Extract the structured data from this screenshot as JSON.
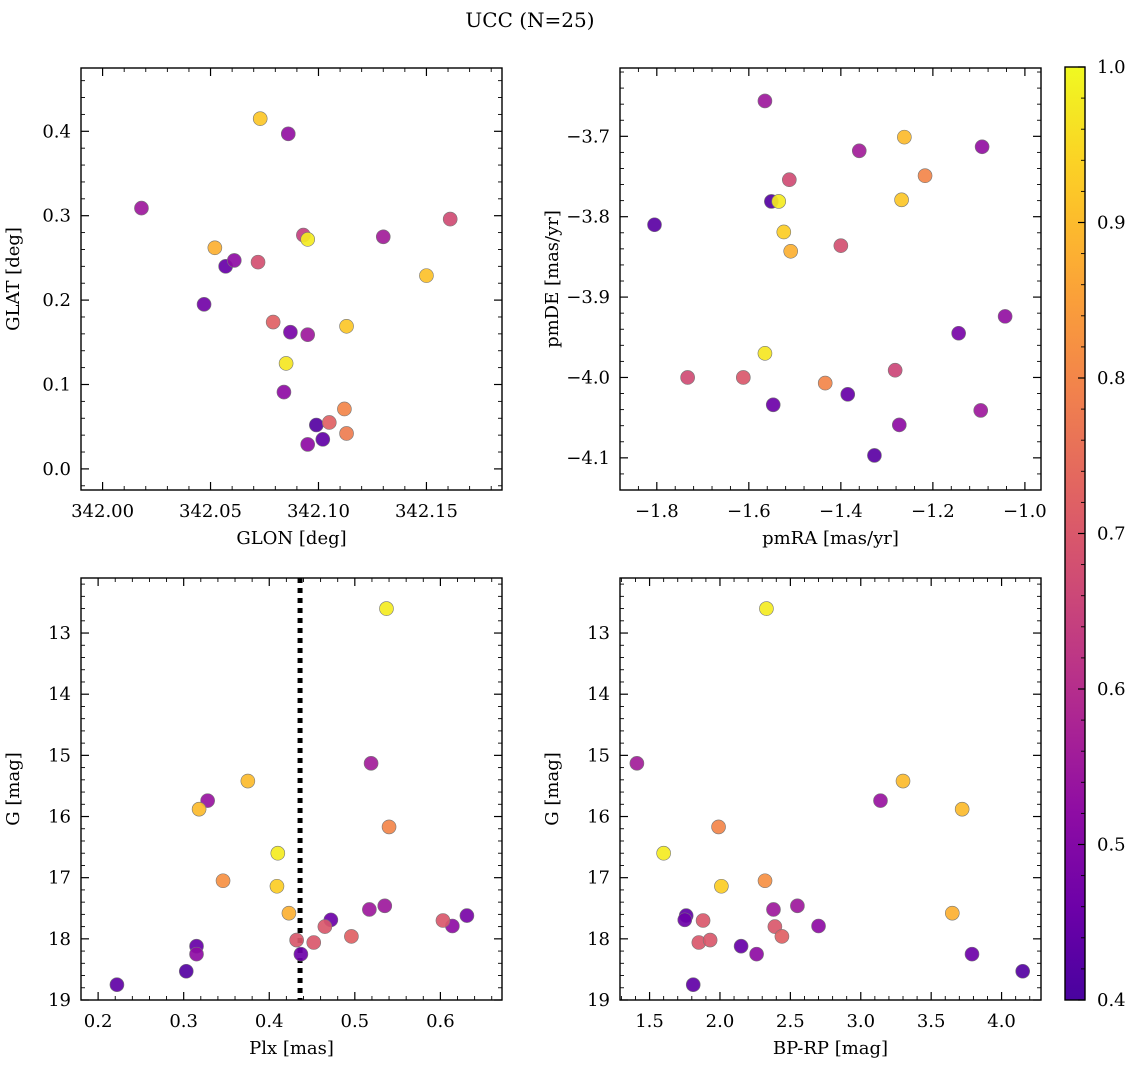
{
  "figure": {
    "title": "UCC (N=25)"
  },
  "colorbar": {
    "range": [
      0.4,
      1.0
    ],
    "ticks": [
      0.4,
      0.5,
      0.6,
      0.7,
      0.8,
      0.9,
      1.0
    ],
    "tick_labels": [
      "0.4",
      "0.5",
      "0.6",
      "0.7",
      "0.8",
      "0.9",
      "1.0"
    ],
    "colormap": "plasma"
  },
  "chart_data": [
    {
      "type": "scatter",
      "xlabel": "GLON [deg]",
      "ylabel": "GLAT [deg]",
      "xlim": [
        341.99,
        342.185
      ],
      "ylim": [
        -0.025,
        0.475
      ],
      "xticks": [
        342.0,
        342.05,
        342.1,
        342.15
      ],
      "xtick_labels": [
        "342.00",
        "342.05",
        "342.10",
        "342.15"
      ],
      "yticks": [
        0.0,
        0.1,
        0.2,
        0.3,
        0.4
      ],
      "ytick_labels": [
        "0.0",
        "0.1",
        "0.2",
        "0.3",
        "0.4"
      ],
      "invert_y": false,
      "points": [
        {
          "x": 342.018,
          "y": 0.309,
          "c": 0.55
        },
        {
          "x": 342.073,
          "y": 0.415,
          "c": 0.92
        },
        {
          "x": 342.086,
          "y": 0.397,
          "c": 0.53
        },
        {
          "x": 342.052,
          "y": 0.262,
          "c": 0.88
        },
        {
          "x": 342.047,
          "y": 0.195,
          "c": 0.47
        },
        {
          "x": 342.057,
          "y": 0.24,
          "c": 0.45
        },
        {
          "x": 342.061,
          "y": 0.247,
          "c": 0.52
        },
        {
          "x": 342.072,
          "y": 0.245,
          "c": 0.68
        },
        {
          "x": 342.079,
          "y": 0.174,
          "c": 0.72
        },
        {
          "x": 342.093,
          "y": 0.277,
          "c": 0.64
        },
        {
          "x": 342.095,
          "y": 0.272,
          "c": 0.98
        },
        {
          "x": 342.087,
          "y": 0.162,
          "c": 0.48
        },
        {
          "x": 342.095,
          "y": 0.159,
          "c": 0.55
        },
        {
          "x": 342.085,
          "y": 0.125,
          "c": 0.97
        },
        {
          "x": 342.084,
          "y": 0.091,
          "c": 0.52
        },
        {
          "x": 342.113,
          "y": 0.169,
          "c": 0.92
        },
        {
          "x": 342.13,
          "y": 0.275,
          "c": 0.56
        },
        {
          "x": 342.161,
          "y": 0.296,
          "c": 0.67
        },
        {
          "x": 342.15,
          "y": 0.229,
          "c": 0.91
        },
        {
          "x": 342.099,
          "y": 0.052,
          "c": 0.42
        },
        {
          "x": 342.095,
          "y": 0.029,
          "c": 0.52
        },
        {
          "x": 342.102,
          "y": 0.035,
          "c": 0.44
        },
        {
          "x": 342.105,
          "y": 0.055,
          "c": 0.72
        },
        {
          "x": 342.112,
          "y": 0.071,
          "c": 0.8
        },
        {
          "x": 342.113,
          "y": 0.042,
          "c": 0.78
        }
      ]
    },
    {
      "type": "scatter",
      "xlabel": "pmRA [mas/yr]",
      "ylabel": "pmDE [mas/yr]",
      "xlim": [
        -1.88,
        -0.965
      ],
      "ylim": [
        -4.14,
        -3.615
      ],
      "xticks": [
        -1.8,
        -1.6,
        -1.4,
        -1.2,
        -1.0
      ],
      "xtick_labels": [
        "−1.8",
        "−1.6",
        "−1.4",
        "−1.2",
        "−1.0"
      ],
      "yticks": [
        -4.1,
        -4.0,
        -3.9,
        -3.8,
        -3.7
      ],
      "ytick_labels": [
        "−4.1",
        "−4.0",
        "−3.9",
        "−3.8",
        "−3.7"
      ],
      "invert_y": false,
      "points": [
        {
          "x": -1.565,
          "y": -3.656,
          "c": 0.55
        },
        {
          "x": -1.262,
          "y": -3.701,
          "c": 0.9
        },
        {
          "x": -1.36,
          "y": -3.718,
          "c": 0.56
        },
        {
          "x": -1.093,
          "y": -3.713,
          "c": 0.53
        },
        {
          "x": -1.512,
          "y": -3.754,
          "c": 0.67
        },
        {
          "x": -1.217,
          "y": -3.749,
          "c": 0.8
        },
        {
          "x": -1.551,
          "y": -3.781,
          "c": 0.42
        },
        {
          "x": -1.535,
          "y": -3.781,
          "c": 0.98
        },
        {
          "x": -1.268,
          "y": -3.779,
          "c": 0.92
        },
        {
          "x": -1.805,
          "y": -3.81,
          "c": 0.43
        },
        {
          "x": -1.524,
          "y": -3.819,
          "c": 0.93
        },
        {
          "x": -1.509,
          "y": -3.843,
          "c": 0.88
        },
        {
          "x": -1.4,
          "y": -3.836,
          "c": 0.68
        },
        {
          "x": -1.043,
          "y": -3.924,
          "c": 0.53
        },
        {
          "x": -1.144,
          "y": -3.945,
          "c": 0.48
        },
        {
          "x": -1.565,
          "y": -3.97,
          "c": 0.97
        },
        {
          "x": -1.733,
          "y": -4.0,
          "c": 0.67
        },
        {
          "x": -1.612,
          "y": -4.0,
          "c": 0.7
        },
        {
          "x": -1.434,
          "y": -4.007,
          "c": 0.8
        },
        {
          "x": -1.282,
          "y": -3.991,
          "c": 0.66
        },
        {
          "x": -1.547,
          "y": -4.034,
          "c": 0.46
        },
        {
          "x": -1.385,
          "y": -4.021,
          "c": 0.45
        },
        {
          "x": -1.273,
          "y": -4.059,
          "c": 0.52
        },
        {
          "x": -1.096,
          "y": -4.041,
          "c": 0.55
        },
        {
          "x": -1.327,
          "y": -4.097,
          "c": 0.43
        }
      ]
    },
    {
      "type": "scatter",
      "xlabel": "Plx [mas]",
      "ylabel": "G [mag]",
      "xlim": [
        0.18,
        0.672
      ],
      "ylim": [
        19.0,
        12.1
      ],
      "xticks": [
        0.2,
        0.3,
        0.4,
        0.5,
        0.6
      ],
      "xtick_labels": [
        "0.2",
        "0.3",
        "0.4",
        "0.5",
        "0.6"
      ],
      "yticks": [
        13,
        14,
        15,
        16,
        17,
        18,
        19
      ],
      "ytick_labels": [
        "13",
        "14",
        "15",
        "16",
        "17",
        "18",
        "19"
      ],
      "invert_y": true,
      "vline": {
        "x": 0.436,
        "style": "dotted"
      },
      "points": [
        {
          "x": 0.537,
          "y": 12.6,
          "c": 0.98
        },
        {
          "x": 0.519,
          "y": 15.13,
          "c": 0.56
        },
        {
          "x": 0.375,
          "y": 15.42,
          "c": 0.9
        },
        {
          "x": 0.328,
          "y": 15.74,
          "c": 0.54
        },
        {
          "x": 0.318,
          "y": 15.88,
          "c": 0.9
        },
        {
          "x": 0.54,
          "y": 16.17,
          "c": 0.8
        },
        {
          "x": 0.41,
          "y": 16.6,
          "c": 0.98
        },
        {
          "x": 0.346,
          "y": 17.05,
          "c": 0.82
        },
        {
          "x": 0.409,
          "y": 17.14,
          "c": 0.93
        },
        {
          "x": 0.423,
          "y": 17.58,
          "c": 0.88
        },
        {
          "x": 0.472,
          "y": 17.69,
          "c": 0.46
        },
        {
          "x": 0.465,
          "y": 17.8,
          "c": 0.7
        },
        {
          "x": 0.517,
          "y": 17.52,
          "c": 0.55
        },
        {
          "x": 0.535,
          "y": 17.46,
          "c": 0.55
        },
        {
          "x": 0.603,
          "y": 17.7,
          "c": 0.7
        },
        {
          "x": 0.614,
          "y": 17.79,
          "c": 0.52
        },
        {
          "x": 0.631,
          "y": 17.62,
          "c": 0.48
        },
        {
          "x": 0.432,
          "y": 18.02,
          "c": 0.7
        },
        {
          "x": 0.452,
          "y": 18.06,
          "c": 0.7
        },
        {
          "x": 0.496,
          "y": 17.96,
          "c": 0.72
        },
        {
          "x": 0.437,
          "y": 18.25,
          "c": 0.46
        },
        {
          "x": 0.315,
          "y": 18.12,
          "c": 0.45
        },
        {
          "x": 0.315,
          "y": 18.25,
          "c": 0.52
        },
        {
          "x": 0.303,
          "y": 18.53,
          "c": 0.42
        },
        {
          "x": 0.222,
          "y": 18.75,
          "c": 0.44
        }
      ]
    },
    {
      "type": "scatter",
      "xlabel": "BP-RP [mag]",
      "ylabel": "G [mag]",
      "xlim": [
        1.29,
        4.28
      ],
      "ylim": [
        19.0,
        12.1
      ],
      "xticks": [
        1.5,
        2.0,
        2.5,
        3.0,
        3.5,
        4.0
      ],
      "xtick_labels": [
        "1.5",
        "2.0",
        "2.5",
        "3.0",
        "3.5",
        "4.0"
      ],
      "yticks": [
        13,
        14,
        15,
        16,
        17,
        18,
        19
      ],
      "ytick_labels": [
        "13",
        "14",
        "15",
        "16",
        "17",
        "18",
        "19"
      ],
      "invert_y": true,
      "points": [
        {
          "x": 2.33,
          "y": 12.6,
          "c": 0.98
        },
        {
          "x": 1.41,
          "y": 15.13,
          "c": 0.56
        },
        {
          "x": 3.3,
          "y": 15.42,
          "c": 0.9
        },
        {
          "x": 3.14,
          "y": 15.74,
          "c": 0.54
        },
        {
          "x": 3.72,
          "y": 15.88,
          "c": 0.9
        },
        {
          "x": 1.99,
          "y": 16.17,
          "c": 0.8
        },
        {
          "x": 1.6,
          "y": 16.6,
          "c": 0.98
        },
        {
          "x": 2.32,
          "y": 17.05,
          "c": 0.82
        },
        {
          "x": 2.01,
          "y": 17.14,
          "c": 0.93
        },
        {
          "x": 3.65,
          "y": 17.58,
          "c": 0.88
        },
        {
          "x": 1.75,
          "y": 17.69,
          "c": 0.46
        },
        {
          "x": 1.76,
          "y": 17.62,
          "c": 0.44
        },
        {
          "x": 1.88,
          "y": 17.7,
          "c": 0.7
        },
        {
          "x": 2.38,
          "y": 17.52,
          "c": 0.55
        },
        {
          "x": 2.55,
          "y": 17.46,
          "c": 0.55
        },
        {
          "x": 2.39,
          "y": 17.8,
          "c": 0.7
        },
        {
          "x": 2.7,
          "y": 17.79,
          "c": 0.52
        },
        {
          "x": 1.85,
          "y": 18.06,
          "c": 0.7
        },
        {
          "x": 1.93,
          "y": 18.02,
          "c": 0.7
        },
        {
          "x": 2.44,
          "y": 17.96,
          "c": 0.72
        },
        {
          "x": 2.15,
          "y": 18.12,
          "c": 0.45
        },
        {
          "x": 2.26,
          "y": 18.25,
          "c": 0.52
        },
        {
          "x": 3.79,
          "y": 18.25,
          "c": 0.46
        },
        {
          "x": 4.15,
          "y": 18.53,
          "c": 0.42
        },
        {
          "x": 1.81,
          "y": 18.75,
          "c": 0.44
        }
      ]
    }
  ]
}
